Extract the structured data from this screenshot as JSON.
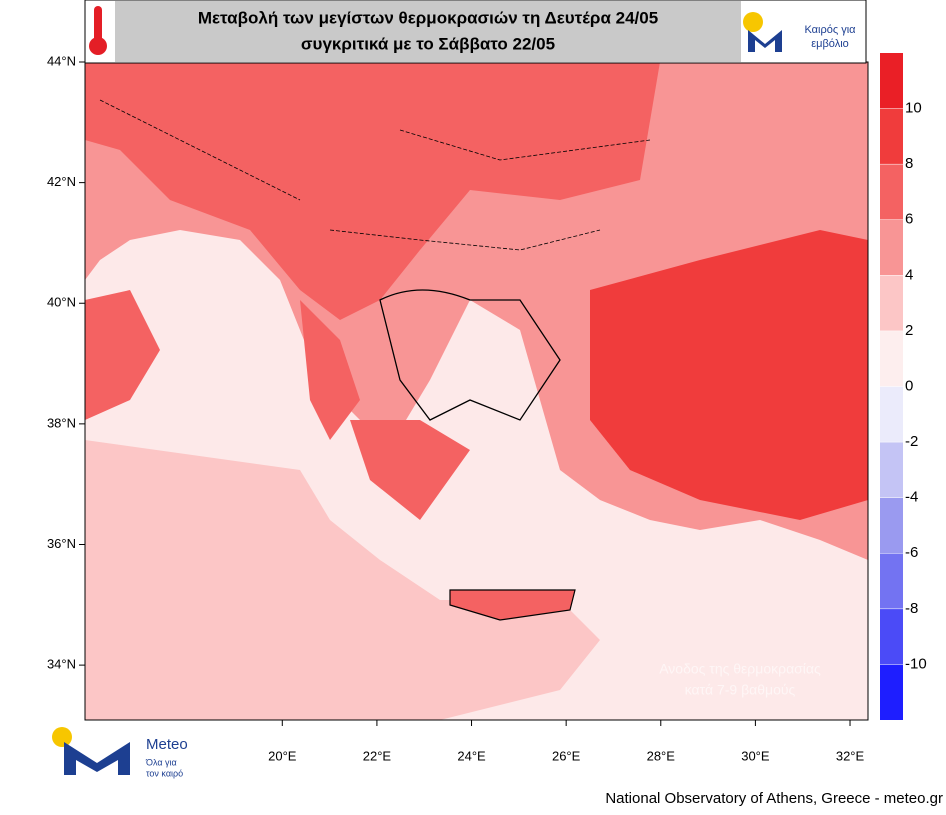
{
  "header": {
    "title_lines": [
      "Μεταβολή των μεγίστων θερμοκρασιών τη Δευτέρα 24/05",
      "συγκριτικά με το Σάββατο 22/05"
    ],
    "badge_lines": [
      "Καιρός για",
      "εμβόλιο"
    ]
  },
  "map": {
    "xlim": [
      15.83,
      32.38
    ],
    "ylim": [
      33.09,
      44.0
    ],
    "yticks": [
      {
        "value": 44,
        "label": "44°N"
      },
      {
        "value": 42,
        "label": "42°N"
      },
      {
        "value": 40,
        "label": "40°N"
      },
      {
        "value": 38,
        "label": "38°N"
      },
      {
        "value": 36,
        "label": "36°N"
      },
      {
        "value": 34,
        "label": "34°N"
      }
    ],
    "xticks": [
      {
        "value": 20,
        "label": "20°E"
      },
      {
        "value": 22,
        "label": "22°E"
      },
      {
        "value": 24,
        "label": "24°E"
      },
      {
        "value": 26,
        "label": "26°E"
      },
      {
        "value": 28,
        "label": "28°E"
      },
      {
        "value": 30,
        "label": "30°E"
      },
      {
        "value": 32,
        "label": "32°E"
      }
    ],
    "annotation_lines": [
      "Ανοδος της θερμοκρασίας",
      "κατά 7-9 βαθμούς"
    ]
  },
  "colorbar": {
    "lim": [
      -12,
      12
    ],
    "ticks": [
      -10,
      -8,
      -6,
      -4,
      -2,
      0,
      2,
      4,
      6,
      8,
      10
    ],
    "colors": [
      "#1e1eff",
      "#4b4bf7",
      "#7373f2",
      "#9a9af0",
      "#c4c4f5",
      "#ebebfb",
      "#fdeeee",
      "#fcc6c6",
      "#f89595",
      "#f46262",
      "#f03c3c",
      "#ea1f26"
    ]
  },
  "footer": {
    "logo_name": "Meteo",
    "logo_tagline": [
      "Όλα για",
      "τον καιρό"
    ],
    "credit": "National Observatory of Athens, Greece - meteo.gr"
  }
}
